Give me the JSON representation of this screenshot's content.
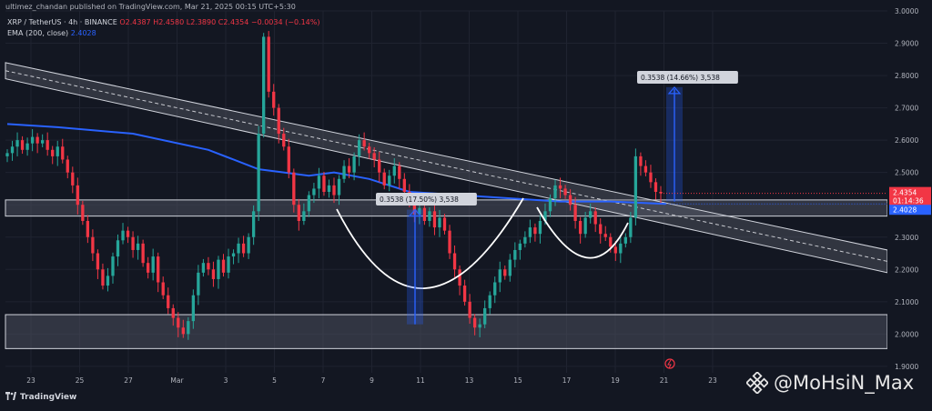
{
  "header": {
    "published_by": "ultimez_chandan published on TradingView.com, Mar 21, 2025 00:15 UTC+5:30"
  },
  "legend": {
    "symbol": "XRP / TetherUS · 4h · BINANCE",
    "open": "O2.4387",
    "high": "H2.4580",
    "low": "L2.3890",
    "close": "C2.4354",
    "change": "−0.0034 (−0.14%)",
    "ema_label": "EMA (200, close)",
    "ema_value": "2.4028"
  },
  "price_tags": {
    "last_price": "2.4354",
    "countdown": "01:14:36",
    "ema": "2.4028"
  },
  "annotations": {
    "measure_left": "0.3538 (17.50%) 3,538",
    "measure_right": "0.3538 (14.66%) 3,538"
  },
  "footer": {
    "brand": "TradingView"
  },
  "watermark": "@MoHsiN_Max",
  "colors": {
    "background": "#131722",
    "up": "#26a69a",
    "down": "#f23645",
    "ema": "#2962ff",
    "measure": "#2962ff",
    "zone_fill": "#4a4e5c",
    "zone_border": "#d1d4dc",
    "channel_fill": "#6b6e78"
  },
  "chart_data": {
    "type": "candlestick",
    "symbol": "XRP / TetherUS",
    "timeframe": "4h",
    "exchange": "BINANCE",
    "x_ticks": [
      "23",
      "25",
      "27",
      "Mar",
      "3",
      "5",
      "7",
      "9",
      "11",
      "13",
      "15",
      "17",
      "19",
      "21",
      "23"
    ],
    "y_ticks": [
      "3.0000",
      "2.9000",
      "2.8000",
      "2.7000",
      "2.6000",
      "2.5000",
      "2.4000",
      "2.3000",
      "2.2000",
      "2.1000",
      "2.0000",
      "1.9000"
    ],
    "ylim": [
      1.88,
      3.0
    ],
    "grid": true,
    "closes": [
      2.56,
      2.58,
      2.6,
      2.57,
      2.59,
      2.61,
      2.59,
      2.6,
      2.57,
      2.55,
      2.58,
      2.54,
      2.5,
      2.46,
      2.4,
      2.35,
      2.3,
      2.25,
      2.2,
      2.15,
      2.18,
      2.24,
      2.29,
      2.32,
      2.3,
      2.26,
      2.28,
      2.22,
      2.19,
      2.24,
      2.16,
      2.12,
      2.08,
      2.05,
      2.02,
      2.0,
      2.04,
      2.12,
      2.19,
      2.22,
      2.2,
      2.17,
      2.23,
      2.19,
      2.24,
      2.25,
      2.28,
      2.25,
      2.3,
      2.38,
      2.62,
      2.92,
      2.75,
      2.7,
      2.62,
      2.58,
      2.5,
      2.4,
      2.35,
      2.38,
      2.43,
      2.45,
      2.49,
      2.44,
      2.46,
      2.43,
      2.48,
      2.52,
      2.5,
      2.55,
      2.6,
      2.58,
      2.56,
      2.54,
      2.5,
      2.46,
      2.49,
      2.52,
      2.48,
      2.44,
      2.41,
      2.37,
      2.39,
      2.35,
      2.38,
      2.33,
      2.36,
      2.32,
      2.25,
      2.2,
      2.15,
      2.1,
      2.05,
      2.02,
      2.03,
      2.08,
      2.12,
      2.16,
      2.2,
      2.18,
      2.23,
      2.26,
      2.28,
      2.3,
      2.33,
      2.31,
      2.35,
      2.38,
      2.42,
      2.46,
      2.45,
      2.43,
      2.4,
      2.35,
      2.31,
      2.36,
      2.38,
      2.34,
      2.31,
      2.3,
      2.27,
      2.25,
      2.28,
      2.3,
      2.36,
      2.55,
      2.52,
      2.5,
      2.47,
      2.44,
      2.4354
    ],
    "ema200": {
      "name": "EMA (200, close)",
      "points": [
        [
          0,
          2.65
        ],
        [
          10,
          2.64
        ],
        [
          25,
          2.62
        ],
        [
          40,
          2.57
        ],
        [
          50,
          2.51
        ],
        [
          55,
          2.5
        ],
        [
          60,
          2.49
        ],
        [
          65,
          2.5
        ],
        [
          72,
          2.48
        ],
        [
          80,
          2.44
        ],
        [
          90,
          2.43
        ],
        [
          100,
          2.42
        ],
        [
          110,
          2.41
        ],
        [
          120,
          2.41
        ],
        [
          131,
          2.4028
        ]
      ]
    },
    "zones": [
      {
        "from": 2.365,
        "to": 2.415
      },
      {
        "from": 1.955,
        "to": 2.06
      }
    ],
    "channel": {
      "upper_start": 2.84,
      "upper_end": 2.26,
      "lower_start": 2.79,
      "lower_end": 2.19
    },
    "measurements": [
      {
        "label": "0.3538 (17.50%) 3,538",
        "from": 2.03,
        "to": 2.385
      },
      {
        "label": "0.3538 (14.66%) 3,538",
        "from": 2.41,
        "to": 2.764
      }
    ]
  }
}
